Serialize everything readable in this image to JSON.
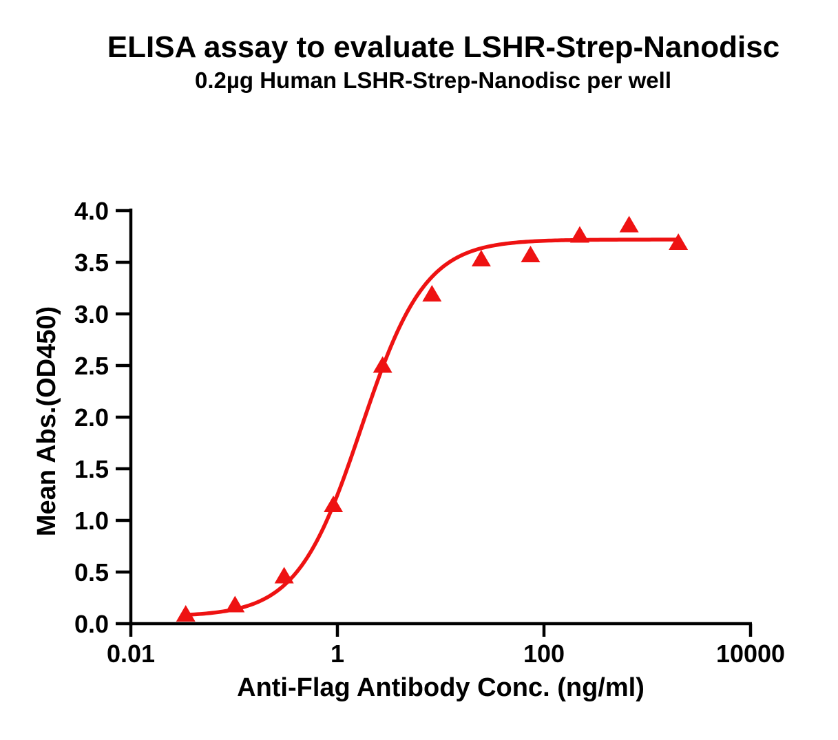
{
  "title": "ELISA assay to evaluate LSHR-Strep-Nanodisc",
  "subtitle": "0.2µg Human LSHR-Strep-Nanodisc per well",
  "colors": {
    "accent": "#EE1212",
    "axis": "#000000",
    "background": "#FFFFFF"
  },
  "chart_data": {
    "type": "scatter",
    "title": "ELISA assay to evaluate LSHR-Strep-Nanodisc",
    "subtitle": "0.2µg Human LSHR-Strep-Nanodisc per well",
    "xlabel": "Anti-Flag Antibody Conc. (ng/ml)",
    "ylabel": "Mean Abs.(OD450)",
    "x_scale": "log",
    "xlim": [
      0.01,
      10000
    ],
    "ylim": [
      0.0,
      4.0
    ],
    "grid": false,
    "legend": "none",
    "x_ticks": [
      0.01,
      1,
      100,
      10000
    ],
    "x_tick_labels": [
      "0.01",
      "1",
      "100",
      "10000"
    ],
    "y_ticks": [
      0.0,
      0.5,
      1.0,
      1.5,
      2.0,
      2.5,
      3.0,
      3.5,
      4.0
    ],
    "y_tick_labels": [
      "0.0",
      "0.5",
      "1.0",
      "1.5",
      "2.0",
      "2.5",
      "3.0",
      "3.5",
      "4.0"
    ],
    "series": [
      {
        "name": "Human LSHR-Strep-Nanodisc",
        "marker": "triangle-up",
        "color": "#EE1212",
        "x": [
          0.034,
          0.102,
          0.305,
          0.914,
          2.74,
          8.23,
          24.7,
          74.1,
          222,
          667,
          2000
        ],
        "y": [
          0.09,
          0.18,
          0.46,
          1.15,
          2.5,
          3.19,
          3.53,
          3.57,
          3.76,
          3.86,
          3.69
        ]
      }
    ],
    "fit_curve": {
      "model": "4PL",
      "bottom": 0.07,
      "top": 3.72,
      "ec50": 1.7,
      "hill": 1.4,
      "x_start": 0.034,
      "x_end": 2000,
      "color": "#EE1212"
    }
  }
}
